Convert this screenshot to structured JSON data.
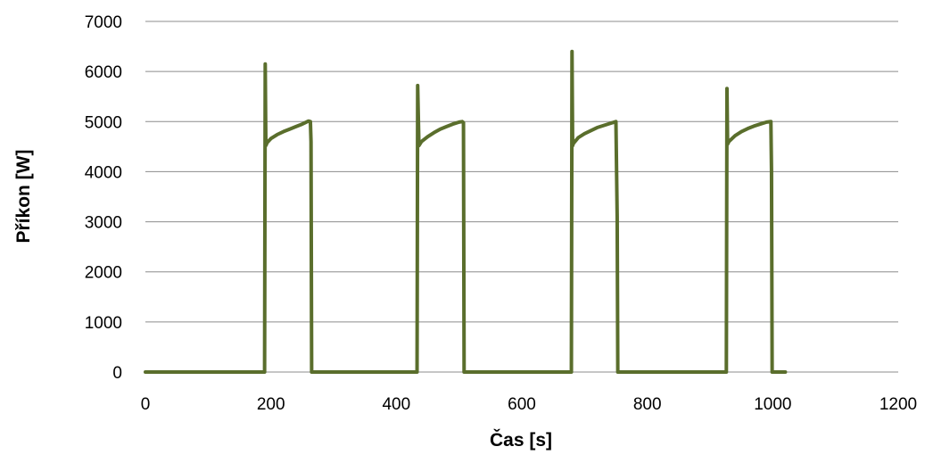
{
  "chart_data": {
    "type": "line",
    "title": "",
    "xlabel": "Čas [s]",
    "ylabel": "Příkon [W]",
    "xlim": [
      0,
      1200
    ],
    "ylim": [
      0,
      7000
    ],
    "xticks": [
      0,
      200,
      400,
      600,
      800,
      1000,
      1200
    ],
    "yticks": [
      0,
      1000,
      2000,
      3000,
      4000,
      5000,
      6000,
      7000
    ],
    "grid": "horizontal",
    "legend": "none",
    "line_color": "#5a6e2c",
    "series": [
      {
        "x": [
          0,
          189,
          190,
          191,
          192,
          194,
          200,
          210,
          220,
          230,
          240,
          250,
          260,
          263,
          264,
          265,
          266,
          270,
          300,
          350,
          400,
          432,
          433,
          434,
          436,
          440,
          450,
          460,
          470,
          480,
          490,
          500,
          505,
          507,
          508,
          510,
          550,
          600,
          650,
          678,
          679,
          680,
          681,
          682,
          690,
          700,
          710,
          720,
          730,
          740,
          750,
          752,
          753,
          754,
          756,
          800,
          850,
          900,
          925,
          926,
          927,
          928,
          930,
          940,
          950,
          960,
          970,
          980,
          990,
          997,
          998,
          999,
          1001,
          1020
        ],
        "y": [
          0,
          0,
          0,
          6150,
          4520,
          4580,
          4660,
          4740,
          4800,
          4850,
          4900,
          4950,
          5010,
          5000,
          4600,
          0,
          0,
          0,
          0,
          0,
          0,
          0,
          0,
          5720,
          4520,
          4600,
          4700,
          4780,
          4850,
          4900,
          4950,
          4990,
          5000,
          4980,
          0,
          0,
          0,
          0,
          0,
          0,
          0,
          6400,
          4520,
          4560,
          4680,
          4760,
          4820,
          4880,
          4920,
          4960,
          5000,
          3100,
          0,
          0,
          0,
          0,
          0,
          0,
          0,
          0,
          5660,
          4550,
          4600,
          4720,
          4800,
          4860,
          4910,
          4950,
          4990,
          5000,
          4000,
          0,
          0,
          0
        ]
      }
    ]
  }
}
